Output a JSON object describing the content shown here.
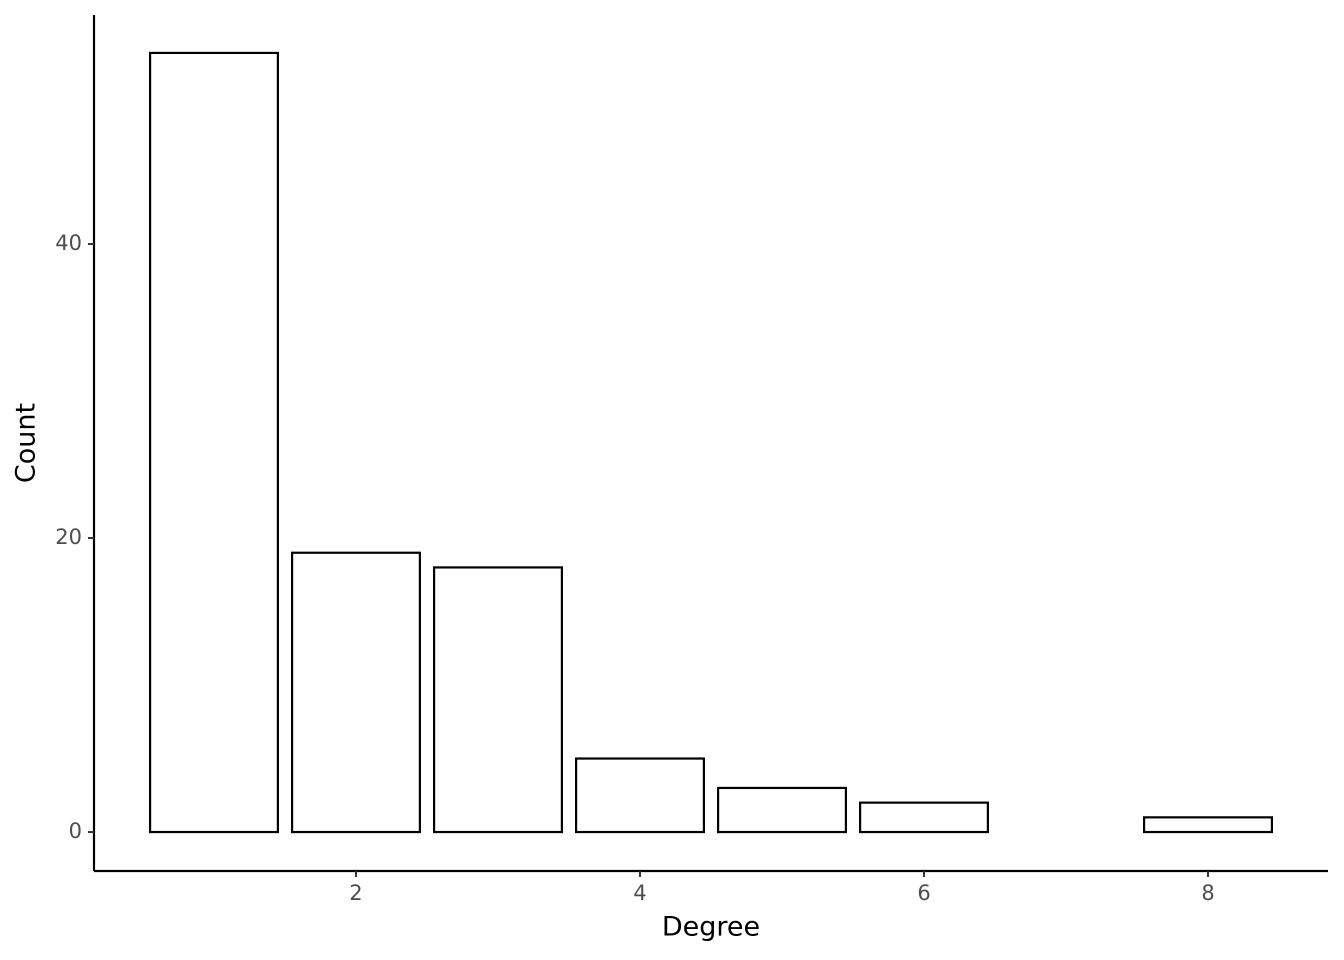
{
  "chart_data": {
    "type": "bar",
    "x": [
      1,
      2,
      3,
      4,
      5,
      6,
      8
    ],
    "values": [
      53,
      19,
      18,
      5,
      3,
      2,
      1
    ],
    "color": "#ffffff",
    "edgecolor": "#000000",
    "x_label": "Degree",
    "y_label": "Count",
    "xlim": [
      0.155,
      8.845
    ],
    "ylim": [
      -2.65,
      55.58
    ],
    "xticks": [
      2,
      4,
      6,
      8
    ],
    "yticks": [
      0,
      20,
      40
    ],
    "grid": false
  }
}
